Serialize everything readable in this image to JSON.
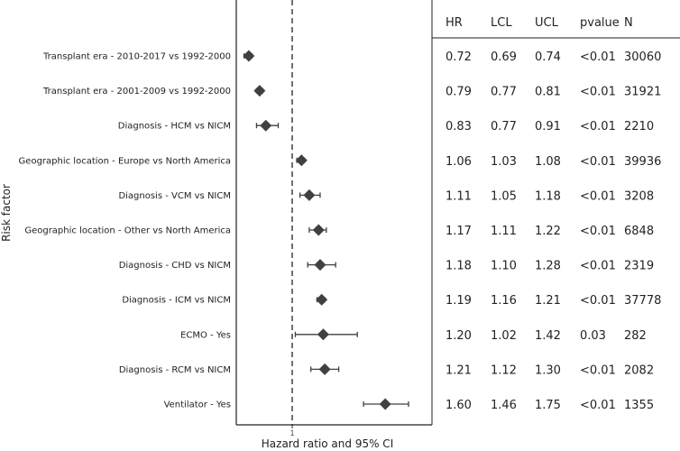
{
  "chart_data": {
    "type": "forest",
    "xlabel": "Hazard ratio and 95% CI",
    "ylabel": "Risk factor",
    "reference_line": 1,
    "x_ticks": [
      1
    ],
    "x_tick_labels": [
      "1"
    ],
    "xlim": [
      0.6,
      1.85
    ],
    "columns": [
      "HR",
      "LCL",
      "UCL",
      "pvalue",
      "N"
    ],
    "rows": [
      {
        "label": "Transplant era - 2010-2017 vs 1992-2000",
        "hr": 0.72,
        "lcl": 0.69,
        "ucl": 0.74,
        "hr_text": "0.72",
        "lcl_text": "0.69",
        "ucl_text": "0.74",
        "pvalue": "<0.01",
        "n": "30060"
      },
      {
        "label": "Transplant era - 2001-2009 vs 1992-2000",
        "hr": 0.79,
        "lcl": 0.77,
        "ucl": 0.81,
        "hr_text": "0.79",
        "lcl_text": "0.77",
        "ucl_text": "0.81",
        "pvalue": "<0.01",
        "n": "31921"
      },
      {
        "label": "Diagnosis - HCM vs NICM",
        "hr": 0.83,
        "lcl": 0.77,
        "ucl": 0.91,
        "hr_text": "0.83",
        "lcl_text": "0.77",
        "ucl_text": "0.91",
        "pvalue": "<0.01",
        "n": "2210"
      },
      {
        "label": "Geographic location - Europe vs North America",
        "hr": 1.06,
        "lcl": 1.03,
        "ucl": 1.08,
        "hr_text": "1.06",
        "lcl_text": "1.03",
        "ucl_text": "1.08",
        "pvalue": "<0.01",
        "n": "39936"
      },
      {
        "label": "Diagnosis - VCM vs NICM",
        "hr": 1.11,
        "lcl": 1.05,
        "ucl": 1.18,
        "hr_text": "1.11",
        "lcl_text": "1.05",
        "ucl_text": "1.18",
        "pvalue": "<0.01",
        "n": "3208"
      },
      {
        "label": "Geographic location - Other vs North America",
        "hr": 1.17,
        "lcl": 1.11,
        "ucl": 1.22,
        "hr_text": "1.17",
        "lcl_text": "1.11",
        "ucl_text": "1.22",
        "pvalue": "<0.01",
        "n": "6848"
      },
      {
        "label": "Diagnosis - CHD vs NICM",
        "hr": 1.18,
        "lcl": 1.1,
        "ucl": 1.28,
        "hr_text": "1.18",
        "lcl_text": "1.10",
        "ucl_text": "1.28",
        "pvalue": "<0.01",
        "n": "2319"
      },
      {
        "label": "Diagnosis - ICM vs NICM",
        "hr": 1.19,
        "lcl": 1.16,
        "ucl": 1.21,
        "hr_text": "1.19",
        "lcl_text": "1.16",
        "ucl_text": "1.21",
        "pvalue": "<0.01",
        "n": "37778"
      },
      {
        "label": "ECMO - Yes",
        "hr": 1.2,
        "lcl": 1.02,
        "ucl": 1.42,
        "hr_text": "1.20",
        "lcl_text": "1.02",
        "ucl_text": "1.42",
        "pvalue": "0.03",
        "n": "282"
      },
      {
        "label": "Diagnosis - RCM vs NICM",
        "hr": 1.21,
        "lcl": 1.12,
        "ucl": 1.3,
        "hr_text": "1.21",
        "lcl_text": "1.12",
        "ucl_text": "1.30",
        "pvalue": "<0.01",
        "n": "2082"
      },
      {
        "label": "Ventilator - Yes",
        "hr": 1.6,
        "lcl": 1.46,
        "ucl": 1.75,
        "hr_text": "1.60",
        "lcl_text": "1.46",
        "ucl_text": "1.75",
        "pvalue": "<0.01",
        "n": "1355"
      }
    ],
    "colors": {
      "marker": "#404040",
      "axis": "#222222"
    }
  }
}
